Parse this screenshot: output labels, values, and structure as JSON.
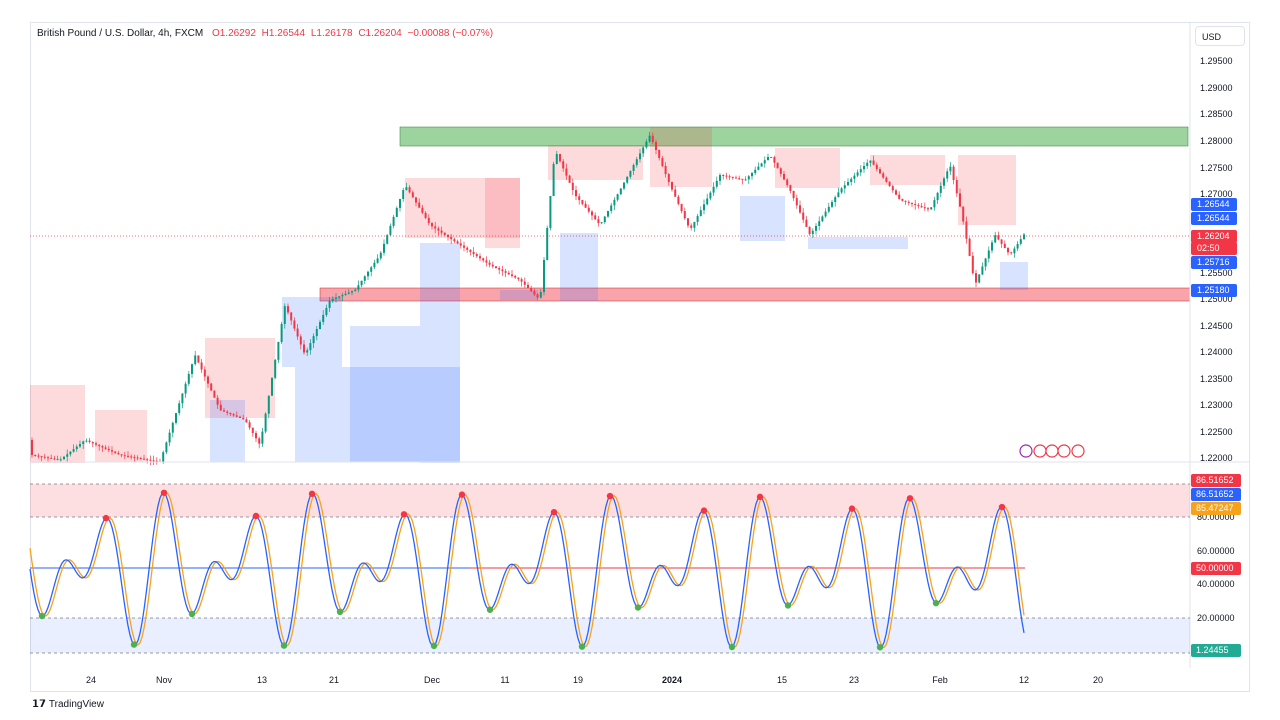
{
  "legend": {
    "symbol": "British Pound / U.S. Dollar, 4h, FXCM",
    "open": "O1.26292",
    "high": "H1.26544",
    "low": "L1.26178",
    "close": "C1.26204",
    "change": "−0.00088 (−0.07%)"
  },
  "currency_button": "USD",
  "price_axis": {
    "labels": [
      "1.29500",
      "1.29000",
      "1.28500",
      "1.28000",
      "1.27500",
      "1.27000",
      "1.26500",
      "1.25500",
      "1.25000",
      "1.24500",
      "1.24000",
      "1.23500",
      "1.23000",
      "1.22500",
      "1.22000"
    ],
    "tags": [
      {
        "text": "1.26544",
        "color": "#2962ff"
      },
      {
        "text": "1.26544",
        "color": "#2962ff"
      },
      {
        "text": "1.26204",
        "color": "#f23645"
      },
      {
        "text": "02:50",
        "color": "#f23645"
      },
      {
        "text": "1.25716",
        "color": "#2962ff"
      },
      {
        "text": "1.25180",
        "color": "#2962ff"
      }
    ]
  },
  "osc_axis": {
    "labels": [
      "80.00000",
      "60.00000",
      "40.00000",
      "20.00000"
    ],
    "tags": [
      {
        "text": "86.51652",
        "color": "#f23645"
      },
      {
        "text": "86.51652",
        "color": "#2962ff"
      },
      {
        "text": "85.47247",
        "color": "#f7a21b"
      },
      {
        "text": "50.00000",
        "color": "#f23645"
      },
      {
        "text": "1.24455",
        "color": "#22ab94"
      }
    ]
  },
  "time_axis": [
    "24",
    "Nov",
    "13",
    "21",
    "Dec",
    "11",
    "19",
    "2024",
    "15",
    "23",
    "Feb",
    "12",
    "20"
  ],
  "footer": {
    "brand": "TradingView"
  },
  "colors": {
    "up": "#089981",
    "down": "#f23645",
    "resistance_zone": "#4caf50",
    "support_zone": "#f23645",
    "fast_line": "#2962ff",
    "slow_line": "#f7a21b"
  }
}
